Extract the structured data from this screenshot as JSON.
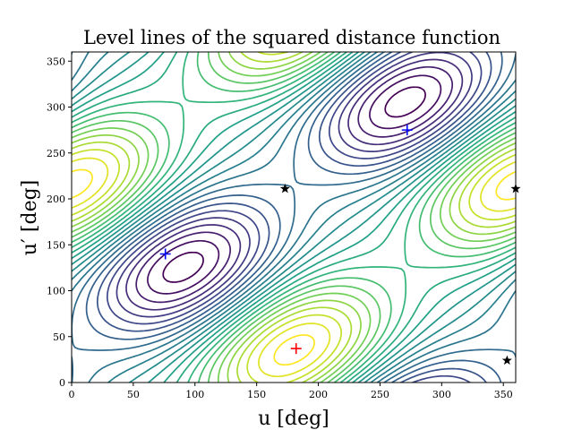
{
  "chart_data": {
    "type": "contour",
    "title": "Level lines of the squared distance function",
    "xlabel": "u [deg]",
    "ylabel": "u′ [deg]",
    "xlim": [
      0,
      360
    ],
    "ylim": [
      0,
      360
    ],
    "xticks": [
      0,
      50,
      100,
      150,
      200,
      250,
      300,
      350
    ],
    "yticks": [
      0,
      50,
      100,
      150,
      200,
      250,
      300,
      350
    ],
    "colormap": "viridis",
    "level_count": 24,
    "markers": [
      {
        "kind": "minimum",
        "symbol": "+",
        "color": "#0000ff",
        "x": 76,
        "y": 140
      },
      {
        "kind": "minimum",
        "symbol": "+",
        "color": "#0000ff",
        "x": 272,
        "y": 275
      },
      {
        "kind": "maximum",
        "symbol": "+",
        "color": "#ff0000",
        "x": 182,
        "y": 37
      },
      {
        "kind": "saddle",
        "symbol": "star",
        "color": "#000000",
        "x": 173,
        "y": 211
      },
      {
        "kind": "saddle",
        "symbol": "star",
        "color": "#000000",
        "x": 360,
        "y": 211
      },
      {
        "kind": "saddle",
        "symbol": "star",
        "color": "#000000",
        "x": 353,
        "y": 24
      }
    ]
  }
}
